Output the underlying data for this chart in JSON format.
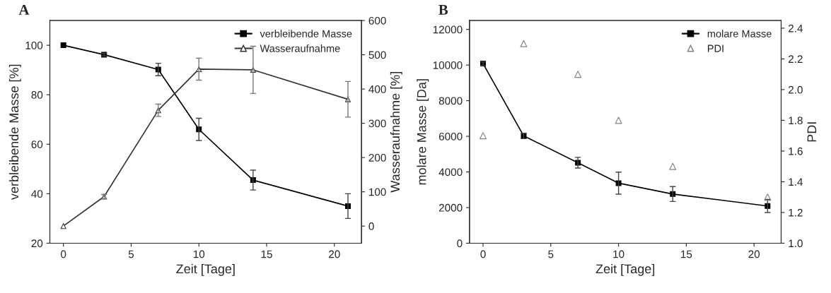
{
  "chart_data": [
    {
      "type": "line",
      "title": "A",
      "xlabel": "Zeit [Tage]",
      "ylabel": "verbleibende Masse [%]",
      "y2label": "Wasseraufnahme [%]",
      "x": [
        0,
        3,
        7,
        10,
        14,
        21
      ],
      "series": [
        {
          "name": "verbleibende Masse",
          "color": "#000000",
          "marker": "square",
          "values": [
            100,
            96.2,
            90.2,
            66,
            45.5,
            35
          ],
          "errors": [
            null,
            0.5,
            2.5,
            4.5,
            4,
            5
          ]
        },
        {
          "name": "Wasseraufnahme",
          "color": "#333333",
          "marker": "triangle",
          "axis": "y2",
          "values": [
            0,
            86,
            338,
            458,
            456,
            370
          ],
          "errors": [
            null,
            6,
            18,
            32,
            69,
            52
          ]
        }
      ],
      "xlim": [
        -1,
        22
      ],
      "xticks": [
        0,
        5,
        10,
        15,
        20
      ],
      "ylim": [
        20,
        110
      ],
      "yticks": [
        20,
        40,
        60,
        80,
        100
      ],
      "y2lim": [
        -50,
        600
      ],
      "y2ticks": [
        0,
        100,
        200,
        300,
        400,
        500,
        600
      ],
      "grid": false,
      "legend": "top right"
    },
    {
      "type": "line",
      "title": "B",
      "xlabel": "Zeit [Tage]",
      "ylabel": "molare Masse [Da]",
      "y2label": "PDI",
      "x": [
        0,
        3,
        7,
        10,
        14,
        21
      ],
      "series": [
        {
          "name": "molare Masse",
          "color": "#000000",
          "marker": "square",
          "values": [
            10080,
            6020,
            4520,
            3370,
            2760,
            2090
          ],
          "errors": [
            100,
            150,
            300,
            620,
            420,
            370
          ]
        },
        {
          "name": "PDI",
          "type": "scatter",
          "color": "#808080",
          "marker": "triangle",
          "axis": "y2",
          "values": [
            1.7,
            2.3,
            2.1,
            1.8,
            1.5,
            1.3
          ]
        }
      ],
      "xlim": [
        -1,
        22
      ],
      "xticks": [
        0,
        5,
        10,
        15,
        20
      ],
      "ylim": [
        0,
        12500
      ],
      "yticks": [
        0,
        2000,
        4000,
        6000,
        8000,
        10000,
        12000
      ],
      "y2lim": [
        1.0,
        2.45
      ],
      "y2ticks": [
        {
          "value": 1.0,
          "label": "1.0"
        },
        1.2,
        1.4,
        1.6,
        1.8,
        {
          "value": 2.0,
          "label": "2.0"
        },
        2.2,
        2.4
      ],
      "grid": false,
      "legend": "top right"
    }
  ]
}
